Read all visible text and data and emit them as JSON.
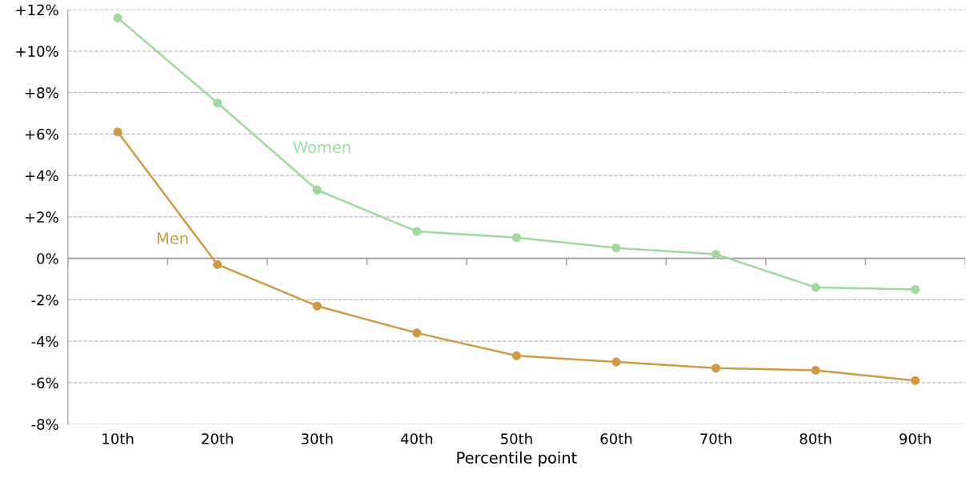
{
  "chart_data": {
    "type": "line",
    "xlabel": "Percentile point",
    "categories": [
      "10th",
      "20th",
      "30th",
      "40th",
      "50th",
      "60th",
      "70th",
      "80th",
      "90th"
    ],
    "series": [
      {
        "name": "Women",
        "color": "#9fd99b",
        "values": [
          11.6,
          7.5,
          3.3,
          1.3,
          1.0,
          0.5,
          0.2,
          -1.4,
          -1.5
        ]
      },
      {
        "name": "Men",
        "color": "#d09a45",
        "values": [
          6.1,
          -0.3,
          -2.3,
          -3.6,
          -4.7,
          -5.0,
          -5.3,
          -5.4,
          -5.9
        ]
      }
    ],
    "ylim": [
      -8,
      12
    ],
    "yticks": [
      {
        "value": 12,
        "label": "+12%"
      },
      {
        "value": 10,
        "label": "+10%"
      },
      {
        "value": 8,
        "label": "+8%"
      },
      {
        "value": 6,
        "label": "+6%"
      },
      {
        "value": 4,
        "label": "+4%"
      },
      {
        "value": 2,
        "label": "+2%"
      },
      {
        "value": 0,
        "label": "0%"
      },
      {
        "value": -2,
        "label": "-2%"
      },
      {
        "value": -4,
        "label": "-4%"
      },
      {
        "value": -6,
        "label": "-6%"
      },
      {
        "value": -8,
        "label": "-8%"
      }
    ],
    "ref_lines": [
      {
        "axis": "y",
        "value": 0,
        "color": "#999999"
      }
    ],
    "grid": "y",
    "marker": "circle",
    "line_style": "solid",
    "legend": false
  }
}
